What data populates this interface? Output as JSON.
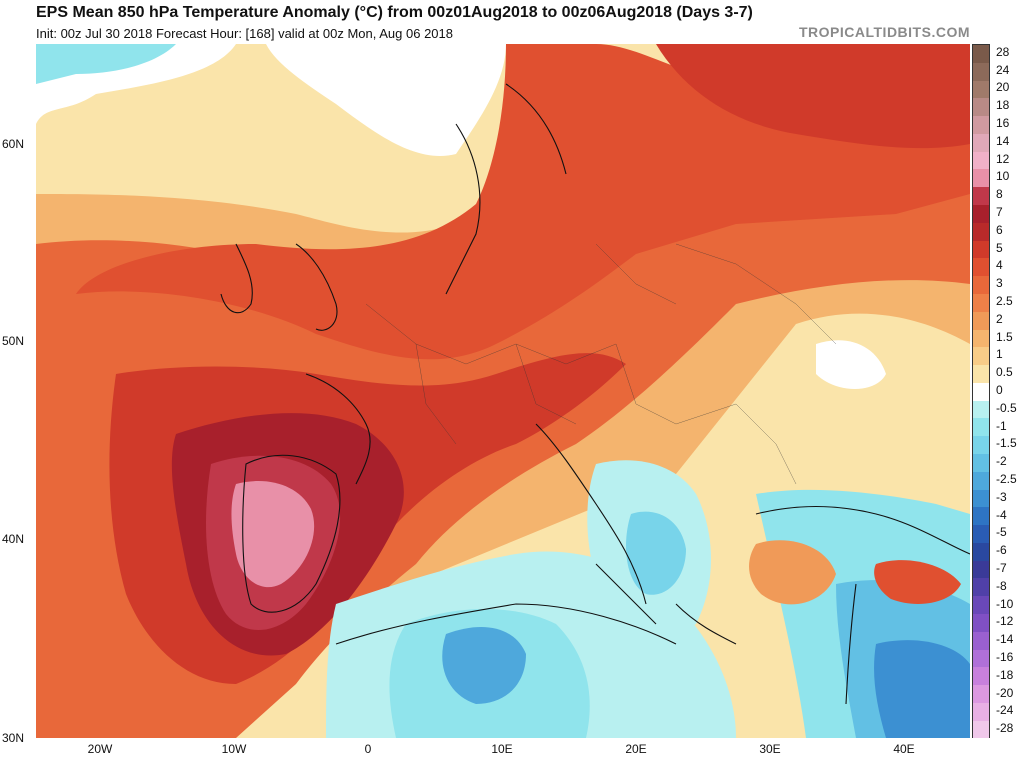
{
  "header": {
    "title": "EPS Mean 850 hPa Temperature Anomaly (°C) from 00z01Aug2018 to 00z06Aug2018 (Days 3-7)",
    "subtitle": "Init: 00z Jul 30 2018   Forecast Hour: [168]   valid at 00z Mon, Aug 06 2018",
    "brand": "TROPICALTIDBITS.COM"
  },
  "axes": {
    "lat_labels": [
      "60N",
      "50N",
      "40N",
      "30N"
    ],
    "lon_labels": [
      "20W",
      "10W",
      "0",
      "10E",
      "20E",
      "30E",
      "40E"
    ]
  },
  "colorbar": {
    "labels": [
      "28",
      "24",
      "20",
      "18",
      "16",
      "14",
      "12",
      "10",
      "8",
      "7",
      "6",
      "5",
      "4",
      "3",
      "2.5",
      "2",
      "1.5",
      "1",
      "0.5",
      "0",
      "-0.5",
      "-1",
      "-1.5",
      "-2",
      "-2.5",
      "-3",
      "-4",
      "-5",
      "-6",
      "-7",
      "-8",
      "-10",
      "-12",
      "-14",
      "-16",
      "-18",
      "-20",
      "-24",
      "-28"
    ],
    "colors": [
      "#7a5a4a",
      "#8c6a5a",
      "#a07a6a",
      "#b88a86",
      "#d09aa0",
      "#e0a8b8",
      "#f0b0c8",
      "#e890a8",
      "#c0384a",
      "#a8202c",
      "#b82a2a",
      "#d03a2a",
      "#e05030",
      "#e8683a",
      "#ee8048",
      "#f09a58",
      "#f4b46e",
      "#f8cc88",
      "#fae4aa",
      "#ffffff",
      "#b8f0f0",
      "#90e4ec",
      "#78d4ea",
      "#62c0e4",
      "#4ea8dc",
      "#3c90d2",
      "#2e74c4",
      "#2a5cb4",
      "#2a48a0",
      "#3a3a98",
      "#5040a8",
      "#6a48b8",
      "#8050c4",
      "#9a60d0",
      "#b070d8",
      "#c880dc",
      "#dc98e0",
      "#e8b0e4",
      "#f0c8ea"
    ]
  },
  "map": {
    "description_colors": {
      "strong_warm": "#a8202c",
      "warm": "#d03a2a",
      "mild": "#f09a58",
      "light": "#fae4aa",
      "cool": "#90e4ec",
      "cold": "#3c90d2"
    }
  }
}
